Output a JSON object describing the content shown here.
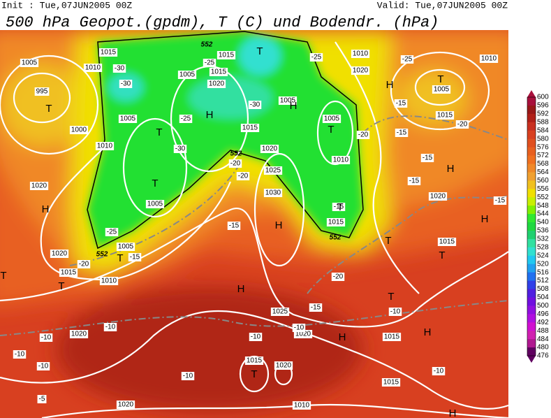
{
  "header": {
    "init": "Init : Tue,07JUN2005 00Z",
    "valid": "Valid: Tue,07JUN2005 00Z",
    "title": "500 hPa Geopot.(gpdm), T (C) und Bodendr. (hPa)"
  },
  "colorbar": {
    "labels": [
      600,
      596,
      592,
      588,
      584,
      580,
      576,
      572,
      568,
      564,
      560,
      556,
      552,
      548,
      544,
      540,
      536,
      532,
      528,
      524,
      520,
      516,
      512,
      508,
      504,
      500,
      496,
      492,
      488,
      484,
      480,
      476
    ],
    "colors": [
      "#a8103c",
      "#981818",
      "#b02018",
      "#c83020",
      "#d84020",
      "#e05020",
      "#e86020",
      "#f07020",
      "#f08828",
      "#f0a030",
      "#f0c020",
      "#f0e000",
      "#c8f000",
      "#80f000",
      "#30e830",
      "#20d840",
      "#20d070",
      "#30e0a0",
      "#30e0d0",
      "#20c8f0",
      "#20a0f0",
      "#2070f0",
      "#3040e8",
      "#5020e0",
      "#7010e0",
      "#9010e0",
      "#b010e0",
      "#d010d0",
      "#d020b0",
      "#b01890",
      "#600060"
    ]
  },
  "map": {
    "isobars": [
      "1015",
      "1005",
      "1010",
      "995",
      "1000",
      "1010",
      "1020",
      "1005",
      "1005",
      "1015",
      "1020",
      "1015",
      "1015",
      "1020",
      "1025",
      "1030",
      "1005",
      "1005",
      "1020",
      "1015",
      "1010",
      "1005",
      "1005",
      "1010",
      "1015",
      "1010",
      "1020",
      "1005",
      "1015",
      "1010",
      "1020",
      "1015",
      "1025",
      "1020",
      "1015",
      "1015",
      "1020",
      "1015",
      "1020",
      "1010",
      "1020"
    ],
    "temperatures": [
      "-30",
      "-30",
      "-25",
      "-30",
      "-25",
      "-25",
      "-15",
      "-20",
      "-15",
      "-15",
      "-20",
      "-15",
      "-15",
      "-15",
      "-20",
      "-20",
      "-15",
      "-25",
      "-20",
      "-15",
      "-20",
      "-15",
      "-10",
      "-10",
      "-10",
      "-10",
      "-10",
      "-10",
      "-10",
      "-10",
      "-10",
      "-5",
      "-25",
      "-30"
    ],
    "centers": [
      "T",
      "T",
      "H",
      "T",
      "T",
      "H",
      "T",
      "T",
      "H",
      "H",
      "T",
      "H",
      "H",
      "T",
      "T",
      "T",
      "T",
      "T",
      "H",
      "T",
      "H",
      "H",
      "T",
      "H",
      "H"
    ],
    "heights": [
      "552",
      "552",
      "552",
      "552"
    ]
  }
}
